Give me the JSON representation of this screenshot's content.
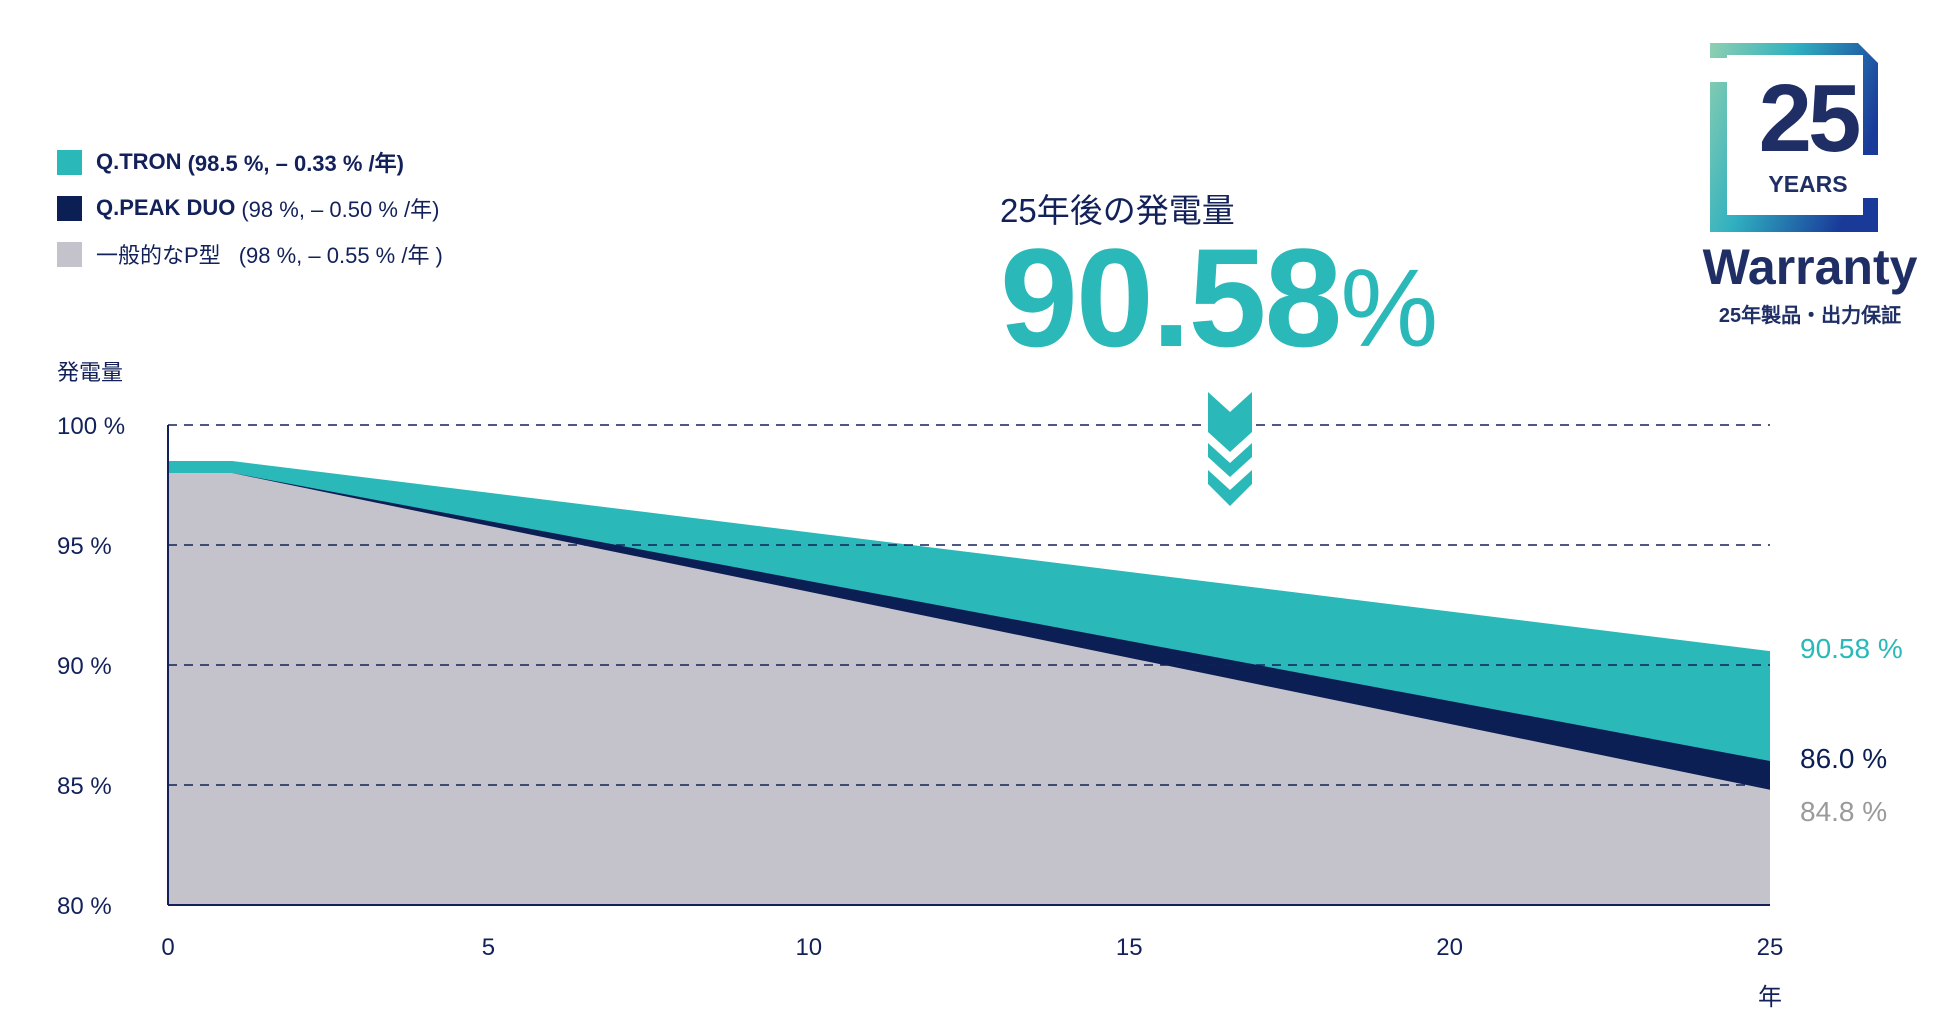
{
  "chart_data": {
    "type": "area",
    "title": "",
    "ylabel": "発電量",
    "xlabel": "年",
    "ylim": [
      80,
      100
    ],
    "xlim": [
      0,
      25
    ],
    "yticks": [
      100,
      95,
      90,
      85,
      80
    ],
    "ytick_labels": [
      "100 %",
      "95 %",
      "90 %",
      "85 %",
      "80 %"
    ],
    "xticks": [
      0,
      5,
      10,
      15,
      20,
      25
    ],
    "xtick_labels": [
      "0",
      "5",
      "10",
      "15",
      "20",
      "25"
    ],
    "grid": "horizontal dashed",
    "legend_position": "top-left",
    "x": [
      0,
      1,
      25
    ],
    "series": [
      {
        "name": "Q.TRON",
        "legend_detail": "(98.5 %, – 0.33 % /年)",
        "values": [
          98.5,
          98.5,
          90.58
        ],
        "color": "#2ab8b8",
        "end_label": "90.58 %"
      },
      {
        "name": "Q.PEAK DUO",
        "legend_detail": "(98 %, – 0.50 % /年)",
        "values": [
          98,
          98,
          86.0
        ],
        "color": "#0b1f55",
        "end_label": "86.0 %"
      },
      {
        "name": "一般的なP型",
        "legend_detail": "(98 %, – 0.55 % /年 )",
        "values": [
          98,
          98,
          84.8
        ],
        "color": "#c4c3cc",
        "end_label": "84.8 %",
        "end_label_color": "#9a9a9a"
      }
    ]
  },
  "highlight": {
    "caption": "25年後の発電量",
    "value": "90.58",
    "unit": "%"
  },
  "logo": {
    "number": "25",
    "years": "YEARS",
    "title": "Warranty",
    "subtitle": "25年製品・出力保証"
  }
}
